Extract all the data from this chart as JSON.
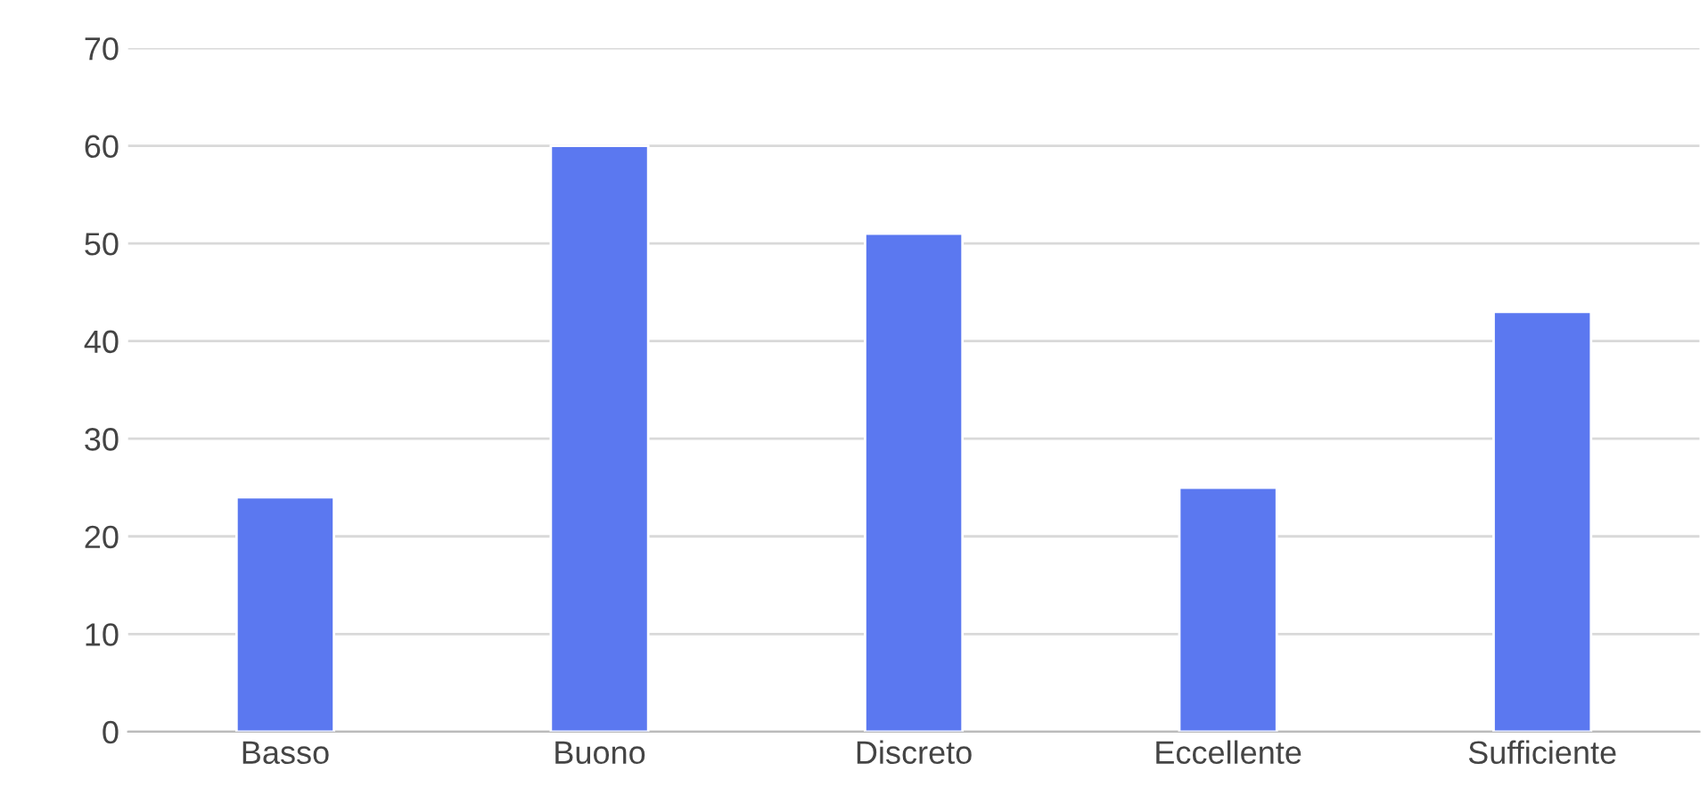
{
  "chart_data": {
    "type": "bar",
    "categories": [
      "Basso",
      "Buono",
      "Discreto",
      "Eccellente",
      "Sufficiente"
    ],
    "values": [
      24,
      60,
      51,
      25,
      43
    ],
    "color": "#5b78f0",
    "ylim": [
      0,
      70
    ],
    "yticks": [
      0,
      10,
      20,
      30,
      40,
      50,
      60,
      70
    ],
    "grid": "y"
  }
}
